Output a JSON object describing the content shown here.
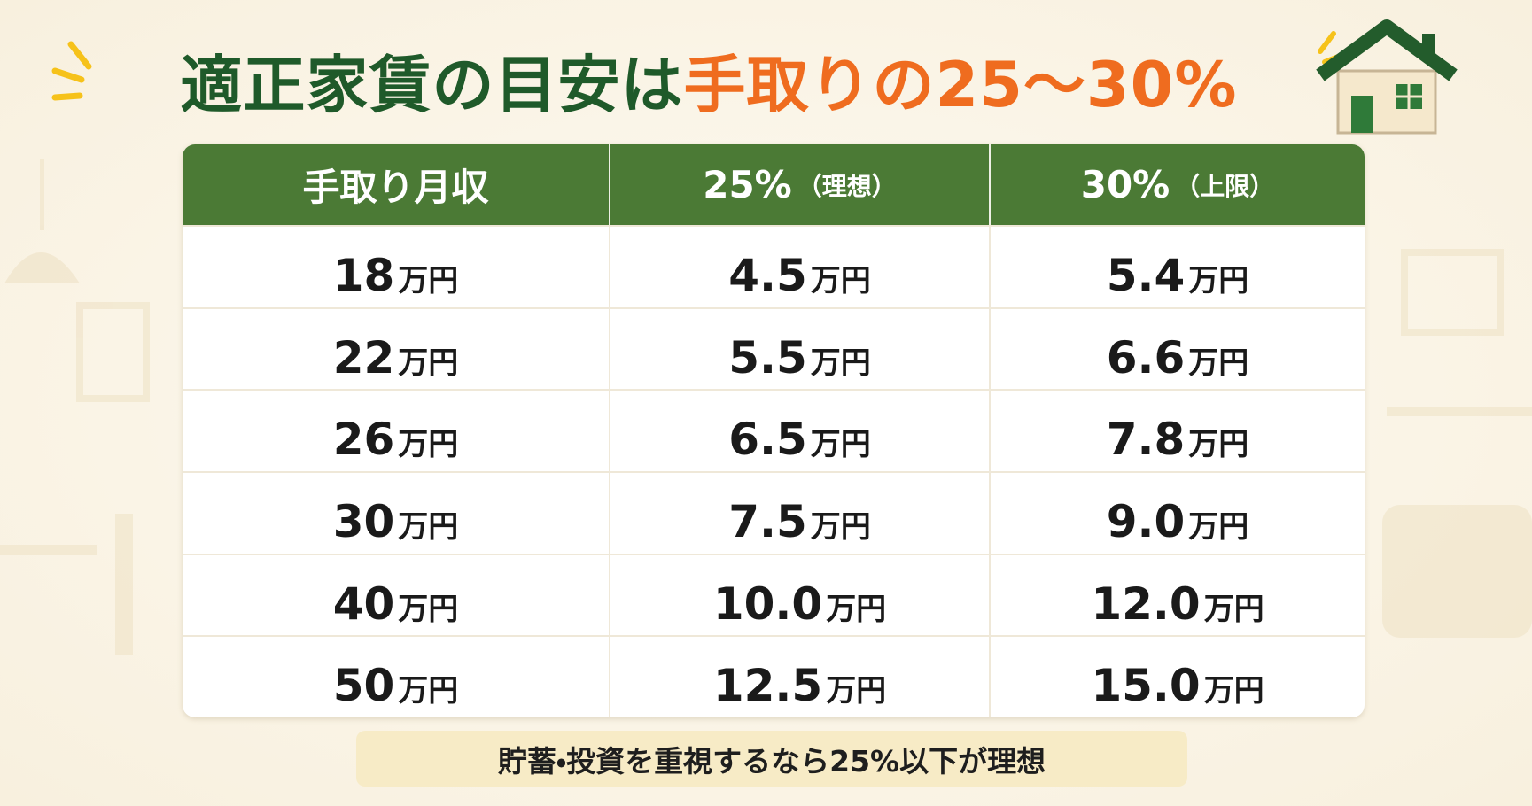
{
  "title": {
    "part1": "適正家賃の目安は",
    "part2": "手取りの25〜30%"
  },
  "table": {
    "header": [
      {
        "text": "手取り月収"
      },
      {
        "text": "25%",
        "note": "（理想）"
      },
      {
        "text": "30%",
        "note": "（上限）"
      }
    ],
    "rows": [
      [
        {
          "value": "18",
          "unit": "万円"
        },
        {
          "value": "4.5",
          "unit": "万円"
        },
        {
          "value": "5.4",
          "unit": "万円"
        }
      ],
      [
        {
          "value": "22",
          "unit": "万円"
        },
        {
          "value": "5.5",
          "unit": "万円"
        },
        {
          "value": "6.6",
          "unit": "万円"
        }
      ],
      [
        {
          "value": "26",
          "unit": "万円"
        },
        {
          "value": "6.5",
          "unit": "万円"
        },
        {
          "value": "7.8",
          "unit": "万円"
        }
      ],
      [
        {
          "value": "30",
          "unit": "万円"
        },
        {
          "value": "7.5",
          "unit": "万円"
        },
        {
          "value": "9.0",
          "unit": "万円"
        }
      ],
      [
        {
          "value": "40",
          "unit": "万円"
        },
        {
          "value": "10.0",
          "unit": "万円"
        },
        {
          "value": "12.0",
          "unit": "万円"
        }
      ],
      [
        {
          "value": "50",
          "unit": "万円"
        },
        {
          "value": "12.5",
          "unit": "万円"
        },
        {
          "value": "15.0",
          "unit": "万円"
        }
      ]
    ]
  },
  "footer": {
    "note": "貯蓄・投資を重視するなら25%以下が理想"
  }
}
